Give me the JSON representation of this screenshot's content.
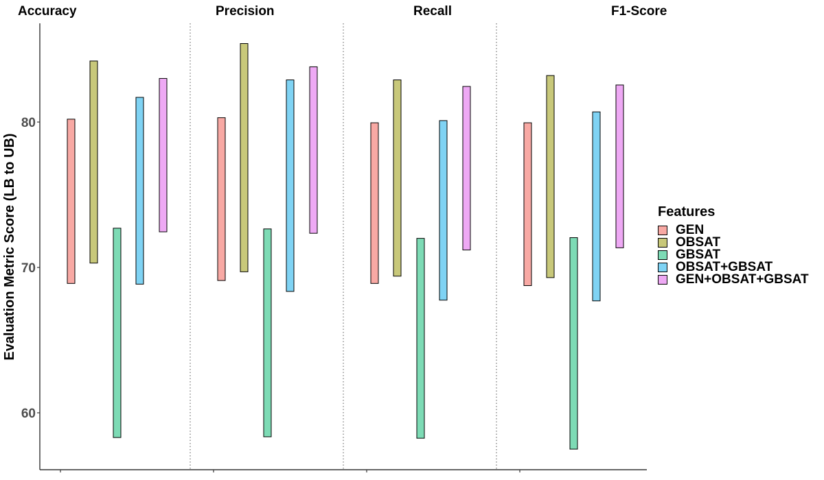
{
  "chart_data": {
    "type": "bar",
    "subtype": "floating-range",
    "ylabel": "Evaluation Metric Score (LB to UB)",
    "ylim": [
      56,
      87
    ],
    "yticks": [
      60,
      70,
      80
    ],
    "grid": false,
    "legend": {
      "title": "Features",
      "placement": "right"
    },
    "panels": [
      "Accuracy",
      "Precision",
      "Recall",
      "F1-Score"
    ],
    "series": [
      {
        "name": "GEN",
        "color": "#F8A9A4",
        "ranges": [
          [
            68.9,
            80.2
          ],
          [
            69.1,
            80.3
          ],
          [
            68.9,
            79.95
          ],
          [
            68.75,
            79.95
          ]
        ]
      },
      {
        "name": "OBSAT",
        "color": "#C8C87A",
        "ranges": [
          [
            70.3,
            84.2
          ],
          [
            69.7,
            85.4
          ],
          [
            69.4,
            82.9
          ],
          [
            69.3,
            83.2
          ]
        ]
      },
      {
        "name": "GBSAT",
        "color": "#7DDBB5",
        "ranges": [
          [
            58.3,
            72.7
          ],
          [
            58.35,
            72.65
          ],
          [
            58.25,
            72.0
          ],
          [
            57.5,
            72.05
          ]
        ]
      },
      {
        "name": "OBSAT+GBSAT",
        "color": "#7FD3F4",
        "ranges": [
          [
            68.85,
            81.7
          ],
          [
            68.35,
            82.9
          ],
          [
            67.75,
            80.1
          ],
          [
            67.7,
            80.7
          ]
        ]
      },
      {
        "name": "GEN+OBSAT+GBSAT",
        "color": "#EEA9F4",
        "ranges": [
          [
            72.45,
            83.0
          ],
          [
            72.35,
            83.8
          ],
          [
            71.2,
            82.45
          ],
          [
            71.35,
            82.55
          ]
        ]
      }
    ]
  }
}
